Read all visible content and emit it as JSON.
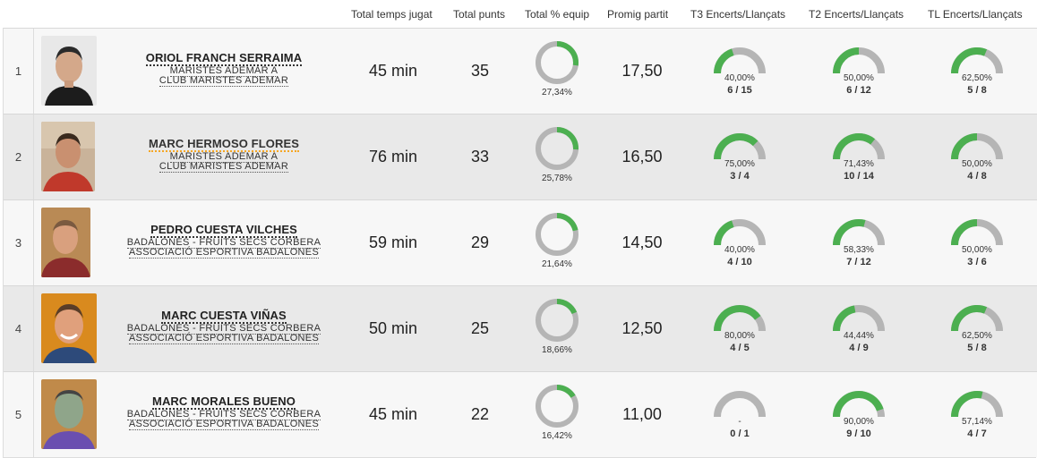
{
  "colors": {
    "green": "#4caf50",
    "gray": "#b5b5b5",
    "highlight_underline": "#f5a623"
  },
  "headers": {
    "time": "Total temps jugat",
    "points": "Total punts",
    "pct_team": "Total % equip",
    "avg": "Promig partit",
    "t3": "T3 Encerts/Llançats",
    "t2": "T2 Encerts/Llançats",
    "tl": "TL Encerts/Llançats"
  },
  "players": [
    {
      "rank": "1",
      "name": "ORIOL FRANCH SERRAIMA",
      "team1": "MARISTES ADEMAR A",
      "team2": "CLUB MARISTES ADEMAR",
      "time": "45 min",
      "points": "35",
      "pct_team": "27,34%",
      "pct_team_value": 27.34,
      "avg": "17,50",
      "t3": {
        "pct": "40,00%",
        "frac": "6 / 15",
        "value": 40.0
      },
      "t2": {
        "pct": "50,00%",
        "frac": "6 / 12",
        "value": 50.0
      },
      "tl": {
        "pct": "62,50%",
        "frac": "5 / 8",
        "value": 62.5
      }
    },
    {
      "rank": "2",
      "name": "MARC HERMOSO FLORES",
      "team1": "MARISTES ADEMAR A",
      "team2": "CLUB MARISTES ADEMAR",
      "time": "76 min",
      "points": "33",
      "pct_team": "25,78%",
      "pct_team_value": 25.78,
      "avg": "16,50",
      "t3": {
        "pct": "75,00%",
        "frac": "3 / 4",
        "value": 75.0
      },
      "t2": {
        "pct": "71,43%",
        "frac": "10 / 14",
        "value": 71.43
      },
      "tl": {
        "pct": "50,00%",
        "frac": "4 / 8",
        "value": 50.0
      }
    },
    {
      "rank": "3",
      "name": "PEDRO CUESTA VILCHES",
      "team1": "BADALONES - FRUITS SECS CORBERA",
      "team2": "ASSOCIACIÓ ESPORTIVA BADALONES",
      "time": "59 min",
      "points": "29",
      "pct_team": "21,64%",
      "pct_team_value": 21.64,
      "avg": "14,50",
      "t3": {
        "pct": "40,00%",
        "frac": "4 / 10",
        "value": 40.0
      },
      "t2": {
        "pct": "58,33%",
        "frac": "7 / 12",
        "value": 58.33
      },
      "tl": {
        "pct": "50,00%",
        "frac": "3 / 6",
        "value": 50.0
      }
    },
    {
      "rank": "4",
      "name": "MARC CUESTA VIÑAS",
      "team1": "BADALONES - FRUITS SECS CORBERA",
      "team2": "ASSOCIACIÓ ESPORTIVA BADALONES",
      "time": "50 min",
      "points": "25",
      "pct_team": "18,66%",
      "pct_team_value": 18.66,
      "avg": "12,50",
      "t3": {
        "pct": "80,00%",
        "frac": "4 / 5",
        "value": 80.0
      },
      "t2": {
        "pct": "44,44%",
        "frac": "4 / 9",
        "value": 44.44
      },
      "tl": {
        "pct": "62,50%",
        "frac": "5 / 8",
        "value": 62.5
      }
    },
    {
      "rank": "5",
      "name": "MARC MORALES BUENO",
      "team1": "BADALONES - FRUITS SECS CORBERA",
      "team2": "ASSOCIACIÓ ESPORTIVA BADALONES",
      "time": "45 min",
      "points": "22",
      "pct_team": "16,42%",
      "pct_team_value": 16.42,
      "avg": "11,00",
      "t3": {
        "pct": "-",
        "frac": "0 / 1",
        "value": 0
      },
      "t2": {
        "pct": "90,00%",
        "frac": "9 / 10",
        "value": 90.0
      },
      "tl": {
        "pct": "57,14%",
        "frac": "4 / 7",
        "value": 57.14
      }
    }
  ]
}
